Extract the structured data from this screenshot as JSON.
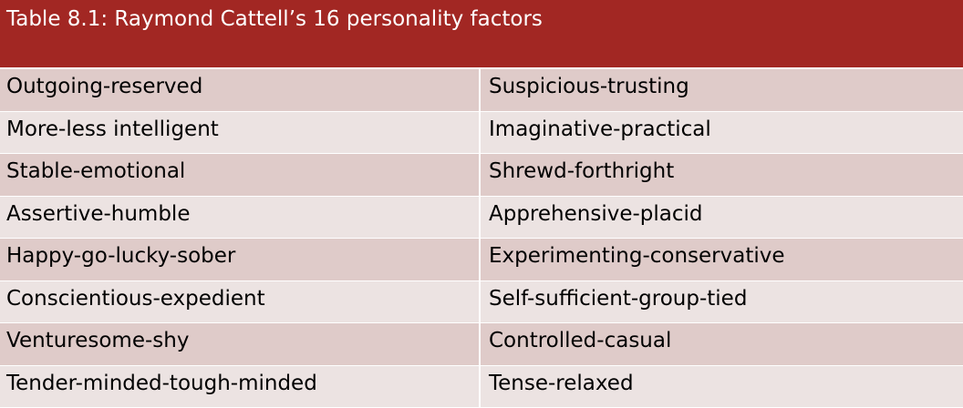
{
  "table": {
    "title": "Table 8.1: Raymond Cattell’s 16 personality factors",
    "rows": [
      {
        "left": "Outgoing-reserved",
        "right": "Suspicious-trusting"
      },
      {
        "left": "More-less intelligent",
        "right": "Imaginative-practical"
      },
      {
        "left": "Stable-emotional",
        "right": "Shrewd-forthright"
      },
      {
        "left": "Assertive-humble",
        "right": "Apprehensive-placid"
      },
      {
        "left": "Happy-go-lucky-sober",
        "right": "Experimenting-conservative"
      },
      {
        "left": "Conscientious-expedient",
        "right": "Self-sufficient-group-tied"
      },
      {
        "left": "Venturesome-shy",
        "right": "Controlled-casual"
      },
      {
        "left": "Tender-minded-tough-minded",
        "right": "Tense-relaxed"
      }
    ]
  },
  "colors": {
    "header": "#a22723",
    "row_dark": "#dfcbc9",
    "row_light": "#ece3e2"
  }
}
